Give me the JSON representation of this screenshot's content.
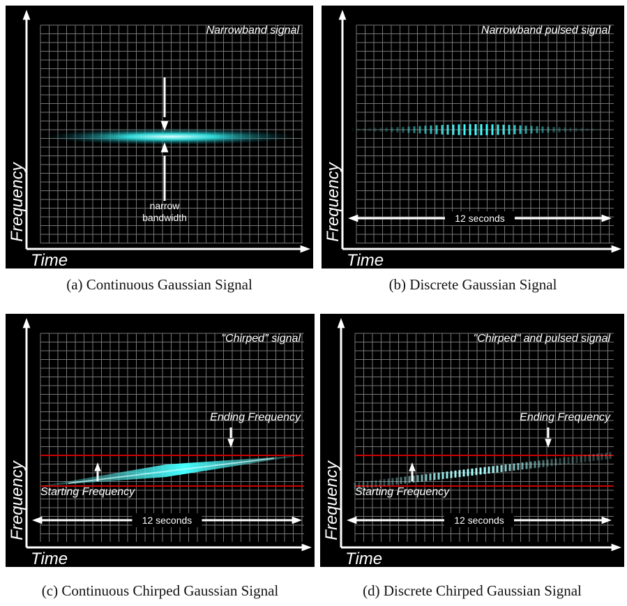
{
  "panels": [
    {
      "label": "Narrowband signal",
      "y_axis": "Frequency",
      "x_axis": "Time",
      "annotations": [
        "narrow",
        "bandwidth"
      ],
      "caption": "(a) Continuous Gaussian Signal"
    },
    {
      "label": "Narrowband pulsed signal",
      "y_axis": "Frequency",
      "x_axis": "Time",
      "annotations": [
        "12 seconds"
      ],
      "caption": "(b) Discrete Gaussian Signal"
    },
    {
      "label": "\"Chirped\" signal",
      "y_axis": "Frequency",
      "x_axis": "Time",
      "annotations": [
        "Ending Frequency",
        "Starting Frequency",
        "12 seconds"
      ],
      "caption": "(c) Continuous Chirped Gaussian Signal"
    },
    {
      "label": "\"Chirped\" and pulsed signal",
      "y_axis": "Frequency",
      "x_axis": "Time",
      "annotations": [
        "Ending Frequency",
        "Starting Frequency",
        "12 seconds"
      ],
      "caption": "(d) Discrete Chirped Gaussian Signal"
    }
  ]
}
